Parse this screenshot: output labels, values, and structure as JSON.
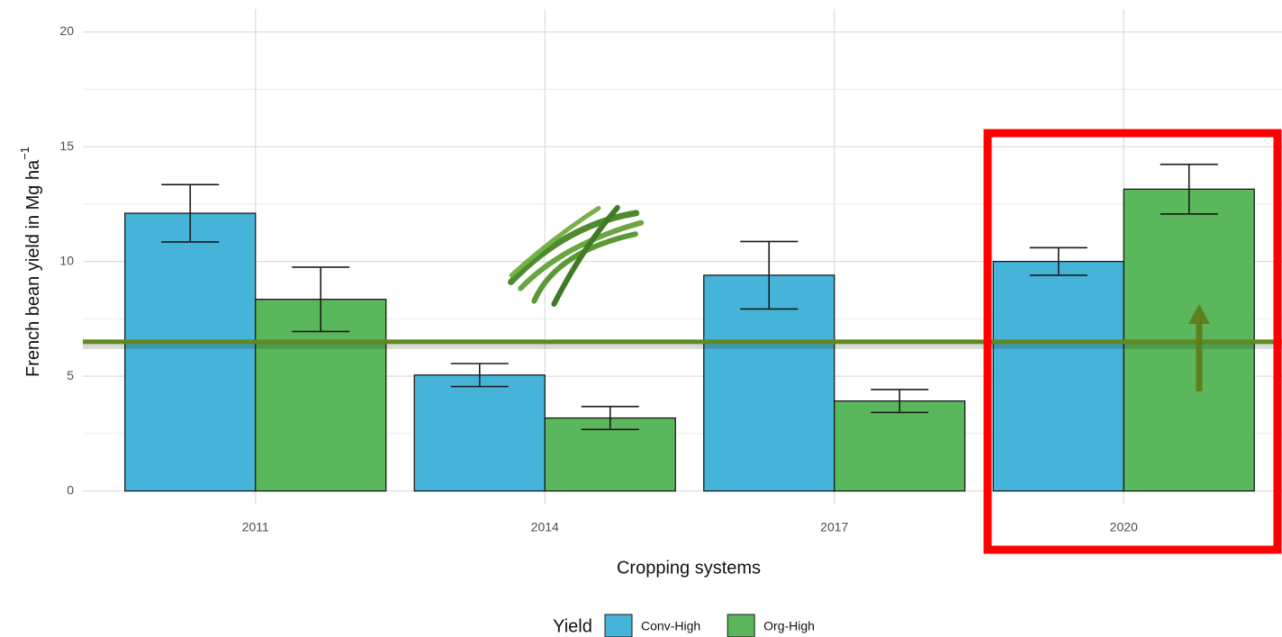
{
  "chart_data": {
    "type": "bar",
    "x_label": "Cropping systems",
    "y_label": "French bean yield in Mg  ha",
    "y_label_sup": "−1",
    "legend_title": "Yield",
    "categories": [
      "2011",
      "2014",
      "2017",
      "2020"
    ],
    "series": [
      {
        "name": "Conv-High",
        "color": "#46b4d9",
        "values": [
          12.1,
          5.05,
          9.4,
          10.0
        ],
        "errors": [
          1.25,
          0.5,
          1.47,
          0.6
        ]
      },
      {
        "name": "Org-High",
        "color": "#5bb75b",
        "values": [
          8.35,
          3.18,
          3.92,
          13.15
        ],
        "errors": [
          1.4,
          0.5,
          0.5,
          1.08
        ]
      }
    ],
    "reference_line": 6.5,
    "ylim": [
      -0.6,
      21
    ],
    "yticks": [
      0,
      5,
      10,
      15,
      20
    ],
    "grid": true
  }
}
